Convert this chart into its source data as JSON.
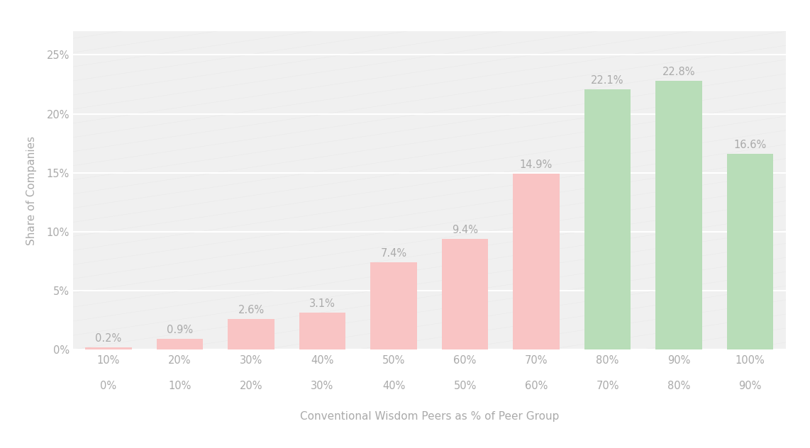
{
  "categories_top": [
    "10%",
    "20%",
    "30%",
    "40%",
    "50%",
    "60%",
    "70%",
    "80%",
    "90%",
    "100%"
  ],
  "categories_bottom": [
    "0%",
    "10%",
    "20%",
    "30%",
    "40%",
    "50%",
    "60%",
    "70%",
    "80%",
    "90%"
  ],
  "values": [
    0.2,
    0.9,
    2.6,
    3.1,
    7.4,
    9.4,
    14.9,
    22.1,
    22.8,
    16.6
  ],
  "bar_colors": [
    "#f9c4c4",
    "#f9c4c4",
    "#f9c4c4",
    "#f9c4c4",
    "#f9c4c4",
    "#f9c4c4",
    "#f9c4c4",
    "#b8ddb8",
    "#b8ddb8",
    "#b8ddb8"
  ],
  "labels": [
    "0.2%",
    "0.9%",
    "2.6%",
    "3.1%",
    "7.4%",
    "9.4%",
    "14.9%",
    "22.1%",
    "22.8%",
    "16.6%"
  ],
  "ylabel": "Share of Companies",
  "xlabel": "Conventional Wisdom Peers as % of Peer Group",
  "ylim": [
    0,
    27
  ],
  "yticks": [
    0,
    5,
    10,
    15,
    20,
    25
  ],
  "ytick_labels": [
    "0%",
    "5%",
    "10%",
    "15%",
    "20%",
    "25%"
  ],
  "background_color": "#ffffff",
  "plot_background_color": "#f0f0f0",
  "grid_color": "#ffffff",
  "label_color": "#aaaaaa",
  "label_fontsize": 10.5,
  "axis_fontsize": 11,
  "tick_fontsize": 10.5
}
